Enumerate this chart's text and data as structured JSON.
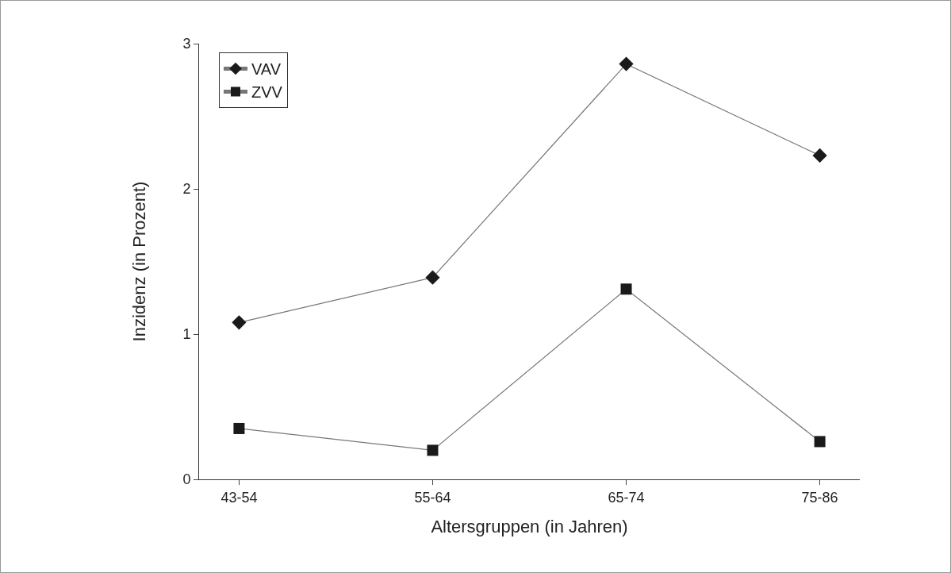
{
  "chart_data": {
    "type": "line",
    "xlabel": "Altersgruppen (in Jahren)",
    "ylabel": "Inzidenz (in Prozent)",
    "categories": [
      "43-54",
      "55-64",
      "65-74",
      "75-86"
    ],
    "series": [
      {
        "name": "VAV",
        "color": "#1a1a1a",
        "marker": "diamond",
        "values": [
          1.08,
          1.39,
          2.86,
          2.23
        ]
      },
      {
        "name": "ZVV",
        "color": "#1a1a1a",
        "marker": "square",
        "values": [
          0.35,
          0.2,
          1.31,
          0.26
        ]
      }
    ],
    "ylim": [
      0,
      3
    ],
    "yticks": [
      0,
      1,
      2,
      3
    ],
    "grid": false,
    "legend": "top left",
    "line_style": "solid"
  }
}
